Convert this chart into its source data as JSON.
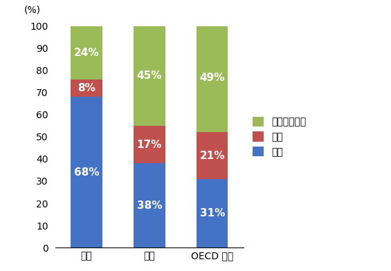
{
  "categories": [
    "日本",
    "米国",
    "OECD 欧州"
  ],
  "series": {
    "発電": [
      68,
      38,
      31
    ],
    "産業": [
      8,
      17,
      21
    ],
    "民生・その他": [
      24,
      45,
      49
    ]
  },
  "colors": {
    "発電": "#4472C4",
    "産業": "#C0504D",
    "民生・その他": "#9BBB59"
  },
  "labels": {
    "発電": [
      "68%",
      "38%",
      "31%"
    ],
    "産業": [
      "8%",
      "17%",
      "21%"
    ],
    "民生・その他": [
      "24%",
      "45%",
      "49%"
    ]
  },
  "ylabel": "(%)",
  "ylim": [
    0,
    100
  ],
  "yticks": [
    0,
    10,
    20,
    30,
    40,
    50,
    60,
    70,
    80,
    90,
    100
  ],
  "bar_width": 0.5,
  "legend_order": [
    "民生・その他",
    "産業",
    "発電"
  ],
  "background_color": "#FFFFFF",
  "title_fontsize": 11,
  "label_fontsize": 11,
  "tick_fontsize": 10,
  "legend_fontsize": 10
}
